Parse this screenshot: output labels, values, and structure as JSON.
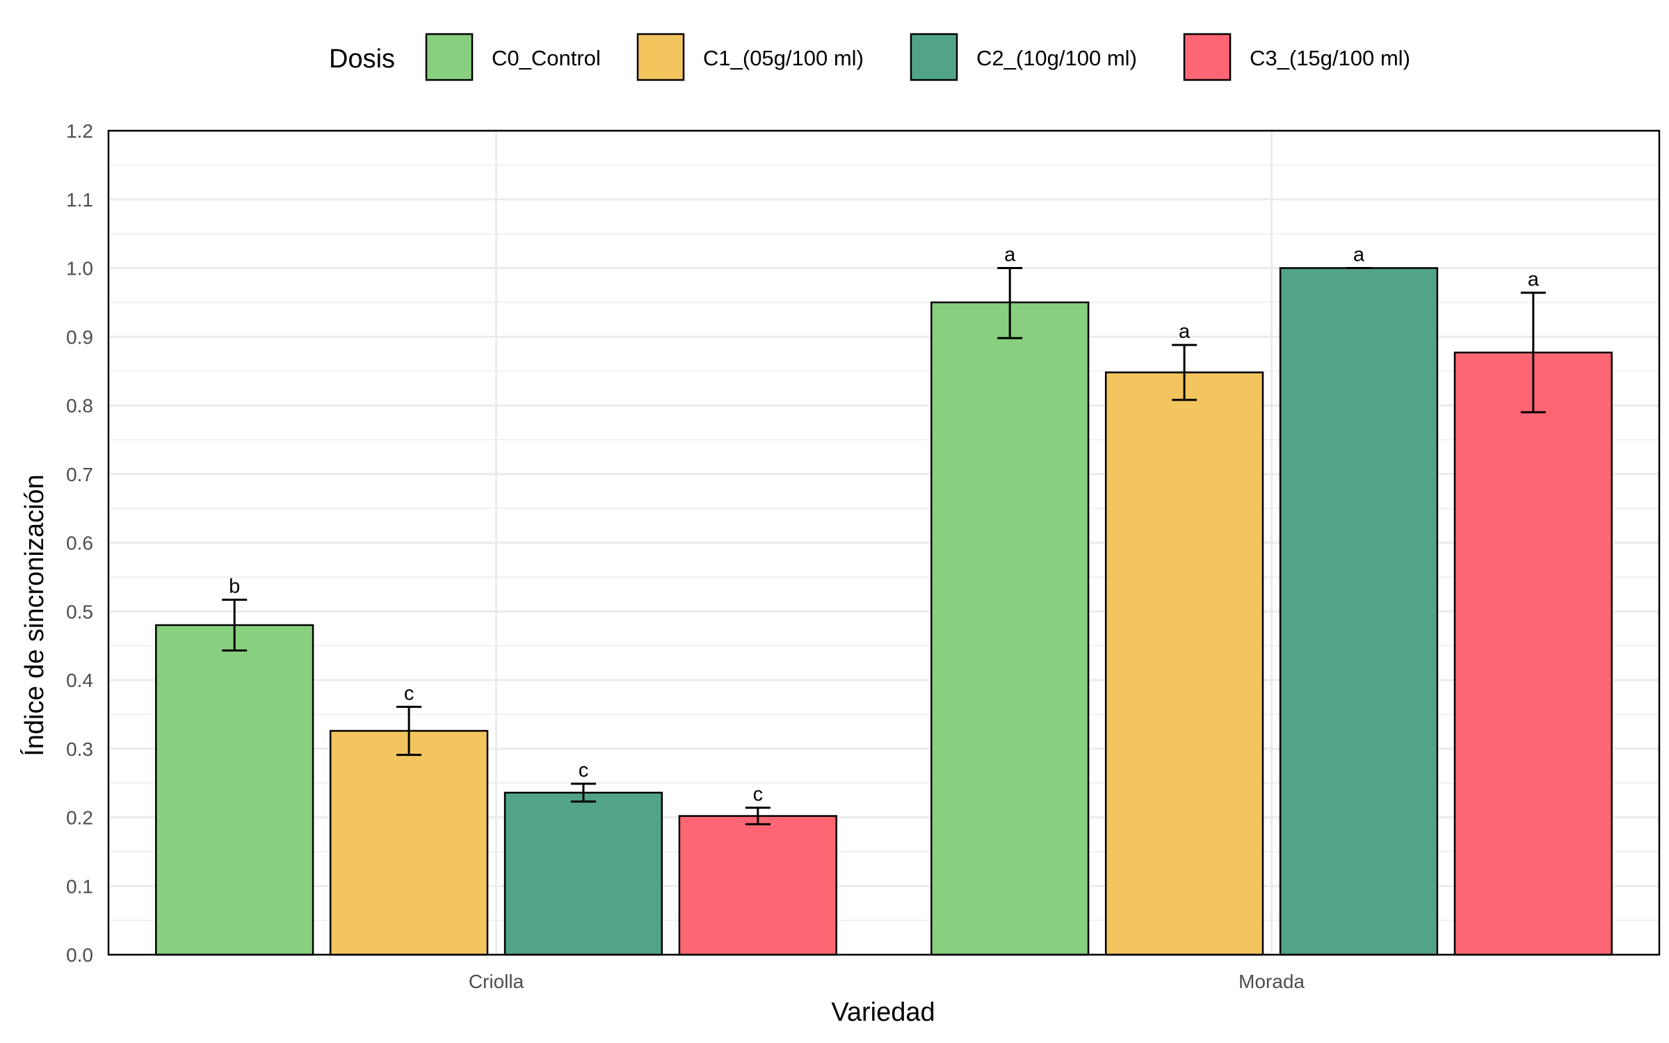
{
  "chart_data": {
    "type": "bar",
    "legend_title": "Dosis",
    "legend_position": "top",
    "xlabel": "Variedad",
    "ylabel": "Índice de sincronización",
    "categories": [
      "Criolla",
      "Morada"
    ],
    "ylim": [
      0,
      1.2
    ],
    "yticks": [
      "0.0",
      "0.1",
      "0.2",
      "0.3",
      "0.4",
      "0.5",
      "0.6",
      "0.7",
      "0.8",
      "0.9",
      "1.0",
      "1.1",
      "1.2"
    ],
    "grid": true,
    "series": [
      {
        "name": "C0_Control",
        "color": "#88CF7F",
        "values": [
          0.48,
          0.95
        ],
        "err_low": [
          0.443,
          0.898
        ],
        "err_high": [
          0.517,
          1.0
        ],
        "labels": [
          "b",
          "a"
        ]
      },
      {
        "name": "C1_(05g/100 ml)",
        "color": "#F3C55E",
        "values": [
          0.326,
          0.848
        ],
        "err_low": [
          0.291,
          0.808
        ],
        "err_high": [
          0.361,
          0.888
        ],
        "labels": [
          "c",
          "a"
        ]
      },
      {
        "name": "C2_(10g/100 ml)",
        "color": "#52A488",
        "values": [
          0.236,
          1.0
        ],
        "err_low": [
          0.223,
          1.0
        ],
        "err_high": [
          0.249,
          1.0
        ],
        "labels": [
          "c",
          "a"
        ]
      },
      {
        "name": "C3_(15g/100 ml)",
        "color": "#FF6673",
        "values": [
          0.202,
          0.877
        ],
        "err_low": [
          0.19,
          0.79
        ],
        "err_high": [
          0.214,
          0.964
        ],
        "labels": [
          "c",
          "a"
        ]
      }
    ]
  }
}
